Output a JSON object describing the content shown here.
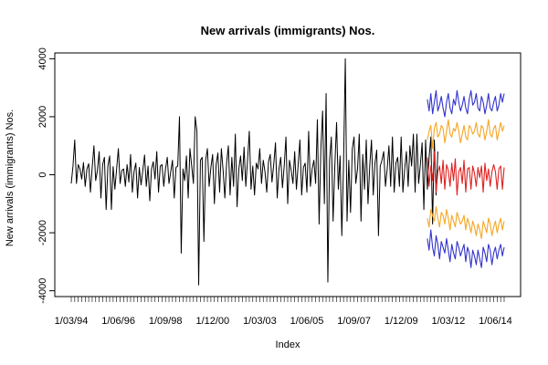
{
  "chart_data": {
    "type": "line",
    "title": "New arrivals (immigrants) Nos.",
    "xlabel": "Index",
    "ylabel": "New arrivals (immigrants) Nos.",
    "ylim": [
      -4200,
      4200
    ],
    "y_ticks": [
      -4000,
      -2000,
      0,
      2000,
      4000
    ],
    "x_tick_labels": [
      "1/03/94",
      "1/06/96",
      "1/09/98",
      "1/12/00",
      "1/03/03",
      "1/06/05",
      "1/09/07",
      "1/12/09",
      "1/03/12",
      "1/06/14"
    ],
    "grid": false,
    "colors": {
      "observed": "#000000",
      "forecast": "#dd2222",
      "interval_80": "#f5a623",
      "interval_95": "#3333cc"
    },
    "series": [
      {
        "role": "observed",
        "values": [
          -300,
          300,
          1200,
          -300,
          350,
          200,
          -150,
          420,
          -400,
          200,
          380,
          -600,
          250,
          1000,
          -200,
          150,
          800,
          -800,
          350,
          600,
          -1200,
          300,
          650,
          -1200,
          280,
          -500,
          200,
          900,
          -300,
          150,
          200,
          -400,
          350,
          -250,
          700,
          -600,
          120,
          400,
          -800,
          250,
          -350,
          150,
          680,
          -400,
          300,
          -900,
          200,
          450,
          -150,
          800,
          -600,
          300,
          350,
          -400,
          200,
          600,
          -300,
          100,
          500,
          -800,
          250,
          300,
          2000,
          -2700,
          200,
          -200,
          650,
          -800,
          900,
          300,
          -300,
          2000,
          1500,
          -3800,
          500,
          600,
          -2300,
          500,
          900,
          -400,
          250,
          700,
          -1000,
          350,
          750,
          -600,
          900,
          150,
          -800,
          400,
          1000,
          -700,
          600,
          -400,
          1400,
          -1100,
          200,
          650,
          -200,
          950,
          -400,
          500,
          1500,
          -500,
          300,
          -700,
          400,
          200,
          900,
          -300,
          500,
          100,
          -600,
          450,
          700,
          -250,
          350,
          1100,
          -800,
          200,
          600,
          -450,
          300,
          1300,
          -1000,
          500,
          150,
          -300,
          800,
          -500,
          350,
          1200,
          -700,
          250,
          400,
          -600,
          1500,
          -400,
          200,
          500,
          -300,
          1900,
          -1700,
          900,
          2200,
          -1000,
          2800,
          -3700,
          500,
          1300,
          -1600,
          300,
          1800,
          -500,
          650,
          -2100,
          400,
          4000,
          -1600,
          500,
          -1300,
          900,
          1300,
          -300,
          200,
          1400,
          -1600,
          700,
          -500,
          1200,
          -1000,
          300,
          1200,
          -700,
          400,
          850,
          -2100,
          300,
          500,
          800,
          -400,
          200,
          1000,
          -400,
          1300,
          -600,
          400,
          600,
          -400,
          1300,
          -600,
          200,
          800,
          -400,
          1000,
          300,
          1400,
          -600,
          1400,
          -300,
          350,
          1100,
          -1200,
          1200,
          -500,
          600,
          1300,
          -1700,
          1200,
          -700,
          800
        ],
        "first_index": 1
      },
      {
        "role": "forecast",
        "name": "",
        "first_index": 205,
        "values": [
          600,
          -400,
          300,
          -200,
          800,
          -600,
          100,
          300,
          -300,
          500,
          -500,
          350,
          150,
          -400,
          400,
          -200,
          550,
          -700,
          100,
          250,
          -300,
          500,
          -600,
          200,
          250,
          -500,
          300,
          50,
          -400,
          250,
          -100,
          300,
          -600,
          400,
          -200,
          200,
          -400,
          100,
          350,
          100,
          -500,
          200,
          300,
          -500,
          250
        ]
      },
      {
        "role": "interval_80_upper",
        "first_index": 205,
        "values": [
          1200,
          1500,
          1700,
          900,
          1600,
          1800,
          1300,
          1400,
          1700,
          1600,
          1100,
          1500,
          1900,
          1400,
          1300,
          1600,
          1500,
          1800,
          1500,
          1100,
          1400,
          1700,
          1300,
          1200,
          1700,
          1600,
          1400,
          1500,
          1800,
          1400,
          1300,
          1700,
          1600,
          1200,
          1500,
          1900,
          1400,
          1300,
          1600,
          1700,
          1200,
          1500,
          1800,
          1500,
          1700
        ]
      },
      {
        "role": "interval_80_lower",
        "first_index": 205,
        "values": [
          -1500,
          -1800,
          -1200,
          -1400,
          -1600,
          -1100,
          -1500,
          -1800,
          -1300,
          -1400,
          -1700,
          -1200,
          -1500,
          -1900,
          -1400,
          -1600,
          -1800,
          -1300,
          -1500,
          -1700,
          -1600,
          -1400,
          -1900,
          -1500,
          -1700,
          -2000,
          -1600,
          -1800,
          -2100,
          -1700,
          -1900,
          -2200,
          -1600,
          -1800,
          -2000,
          -1500,
          -1700,
          -2100,
          -1800,
          -1600,
          -2000,
          -1700,
          -1500,
          -1900,
          -1600
        ]
      },
      {
        "role": "interval_95_upper",
        "first_index": 205,
        "values": [
          2600,
          2200,
          2800,
          2100,
          2500,
          2900,
          2200,
          2400,
          2700,
          2300,
          2000,
          2500,
          2800,
          2300,
          2100,
          2600,
          2400,
          2900,
          2500,
          2200,
          2400,
          2700,
          2300,
          2100,
          2600,
          2900,
          2400,
          2500,
          2800,
          2300,
          2200,
          2700,
          2500,
          2100,
          2400,
          2800,
          2300,
          2200,
          2500,
          2700,
          2200,
          2400,
          2800,
          2500,
          2800
        ]
      },
      {
        "role": "interval_95_lower",
        "first_index": 205,
        "values": [
          -2200,
          -2600,
          -1900,
          -2500,
          -2800,
          -2100,
          -2400,
          -2900,
          -2300,
          -2500,
          -2700,
          -2200,
          -2600,
          -3000,
          -2400,
          -2700,
          -2900,
          -2300,
          -2500,
          -2800,
          -2600,
          -2400,
          -3000,
          -2500,
          -2700,
          -3200,
          -2600,
          -2800,
          -3100,
          -2600,
          -2900,
          -3200,
          -2500,
          -2700,
          -3000,
          -2400,
          -2600,
          -3100,
          -2700,
          -2500,
          -2900,
          -2600,
          -2400,
          -2800,
          -2500
        ]
      }
    ]
  }
}
